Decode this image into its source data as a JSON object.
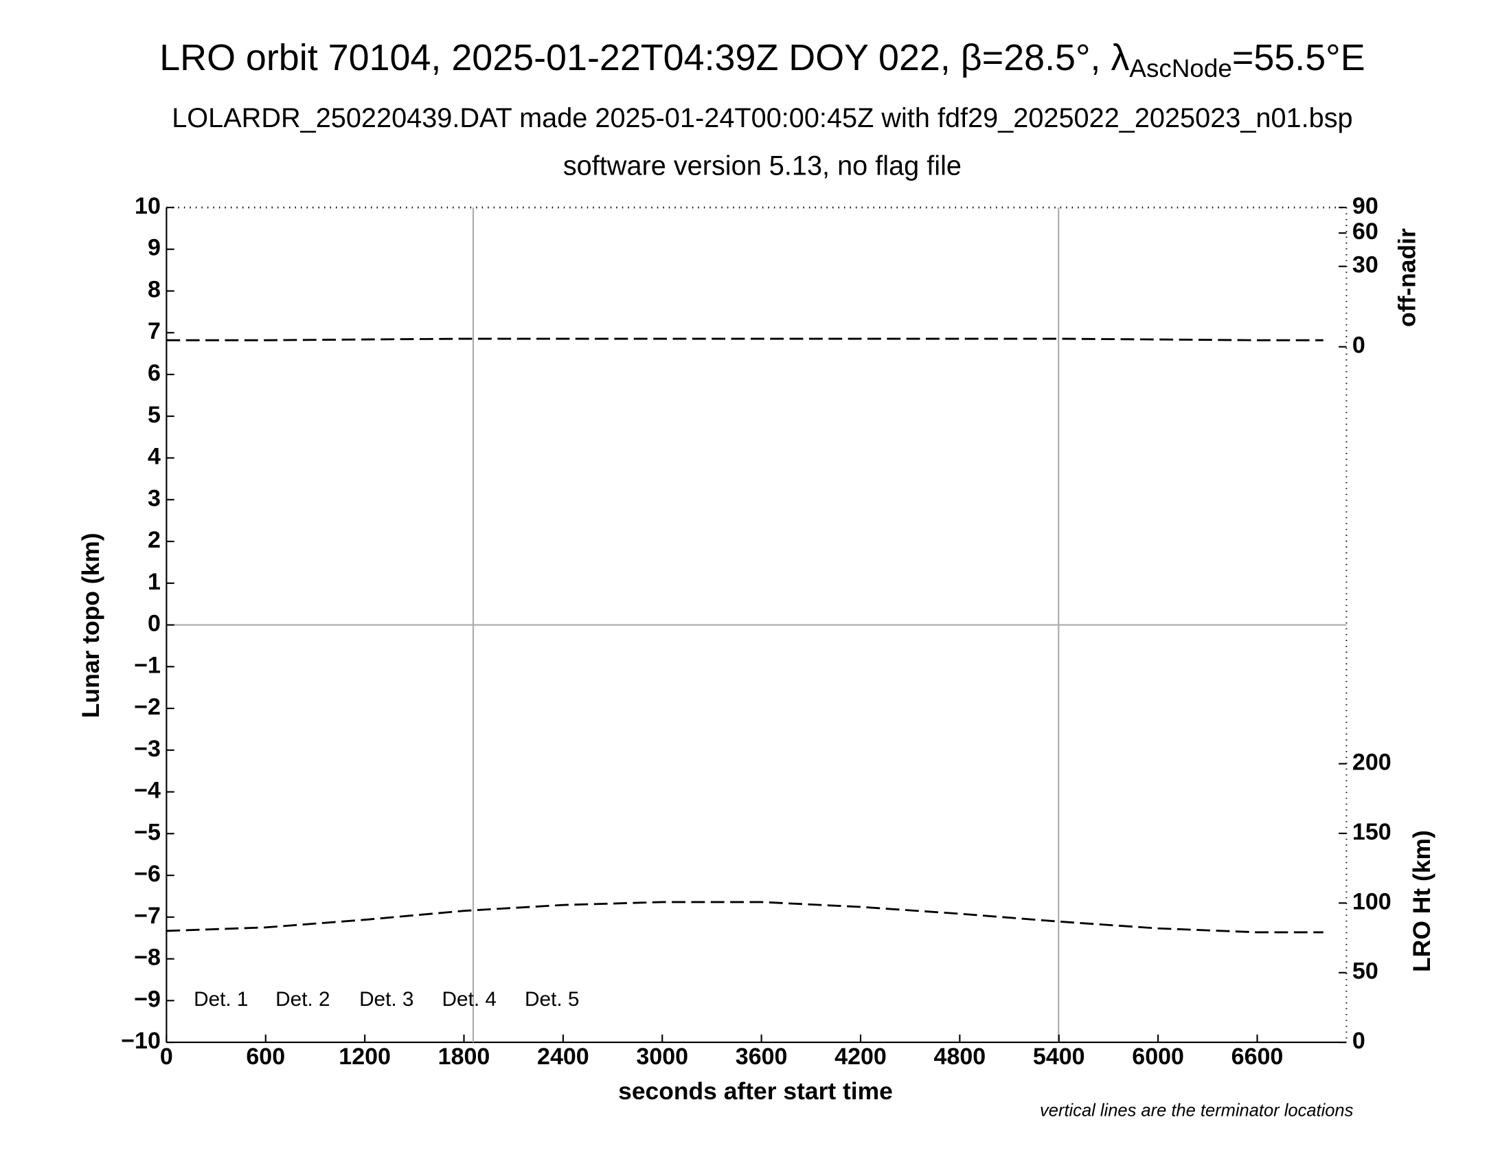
{
  "chart_data": {
    "type": "line",
    "title": {
      "main": "LRO orbit 70104, 2025-01-22T04:39Z DOY 022, β=28.5°, λ",
      "sub": "AscNode",
      "end": "=55.5°E"
    },
    "subtitle": "LOLARDR_250220439.DAT made 2025-01-24T00:00:45Z with fdf29_2025022_2025023_n01.bsp",
    "subtitle2": "software version 5.13, no flag file",
    "xlabel": "seconds after start time",
    "ylabel": "Lunar topo (km)",
    "y2label": "off-nadir",
    "y3label": "LRO Ht (km)",
    "footnote": "vertical lines are the terminator locations",
    "xlim": [
      0,
      7140
    ],
    "xticks": [
      0,
      600,
      1200,
      1800,
      2400,
      3000,
      3600,
      4200,
      4800,
      5400,
      6000,
      6600
    ],
    "ylim": [
      -10,
      10
    ],
    "yticks": [
      {
        "value": -10,
        "label": "−10"
      },
      {
        "value": -9,
        "label": "−9"
      },
      {
        "value": -8,
        "label": "−8"
      },
      {
        "value": -7,
        "label": "−7"
      },
      {
        "value": -6,
        "label": "−6"
      },
      {
        "value": -5,
        "label": "−5"
      },
      {
        "value": -4,
        "label": "−4"
      },
      {
        "value": -3,
        "label": "−3"
      },
      {
        "value": -2,
        "label": "−2"
      },
      {
        "value": -1,
        "label": "−1"
      },
      0,
      1,
      2,
      3,
      4,
      5,
      6,
      7,
      8,
      9,
      10
    ],
    "y2lim": [
      0,
      90
    ],
    "y2scale": "sqrt",
    "y2ticks": [
      0,
      30,
      60,
      90
    ],
    "y3lim": [
      0,
      200
    ],
    "y3ticks": [
      0,
      50,
      100,
      150,
      200
    ],
    "terminators": [
      1856,
      5398
    ],
    "zero_line": 0,
    "legend": [
      {
        "name": "Det. 1",
        "color": "#000000"
      },
      {
        "name": "Det. 2",
        "color": "#0000ff"
      },
      {
        "name": "Det. 3",
        "color": "#00ee00"
      },
      {
        "name": "Det. 4",
        "color": "#ffa500"
      },
      {
        "name": "Det. 5",
        "color": "#ff0000"
      }
    ],
    "x": [
      0,
      600,
      1200,
      1800,
      2400,
      3000,
      3600,
      4200,
      4800,
      5400,
      6000,
      6600,
      7000
    ],
    "series": [
      {
        "axis": "y2",
        "color": "#000000",
        "values": [
          0.2,
          0.2,
          0.25,
          0.3,
          0.3,
          0.3,
          0.3,
          0.3,
          0.3,
          0.3,
          0.25,
          0.2,
          0.2
        ]
      },
      {
        "axis": "y3",
        "color": "#000000",
        "values": [
          80,
          82.5,
          88,
          94.4,
          98.6,
          100.7,
          100.7,
          97.2,
          92.3,
          86.7,
          81.8,
          79,
          79
        ]
      }
    ]
  }
}
